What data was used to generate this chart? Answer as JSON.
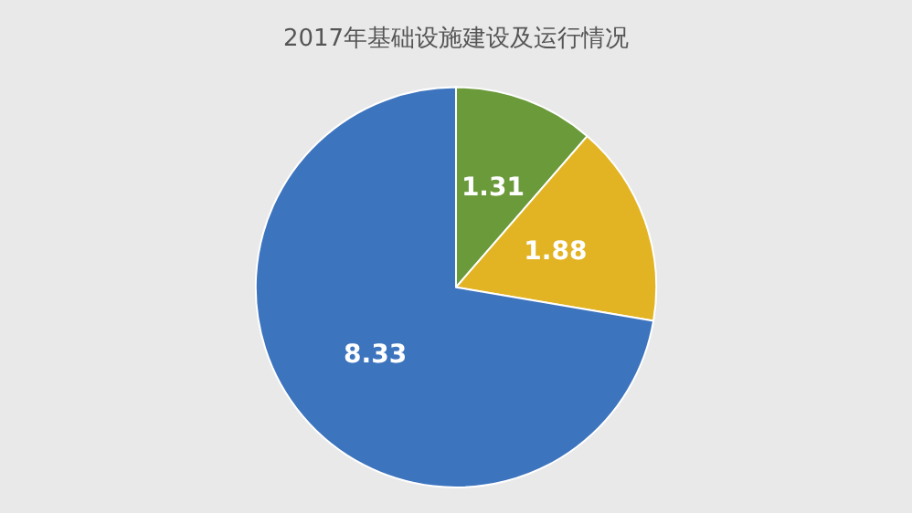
{
  "chart_data": {
    "type": "pie",
    "title": "2017年基础设施建设及运行情况",
    "categories": [
      null,
      null,
      null
    ],
    "values": [
      1.31,
      1.88,
      8.33
    ],
    "colors": [
      "#6b9a3b",
      "#e2b322",
      "#3d74be"
    ],
    "data_labels": true
  }
}
